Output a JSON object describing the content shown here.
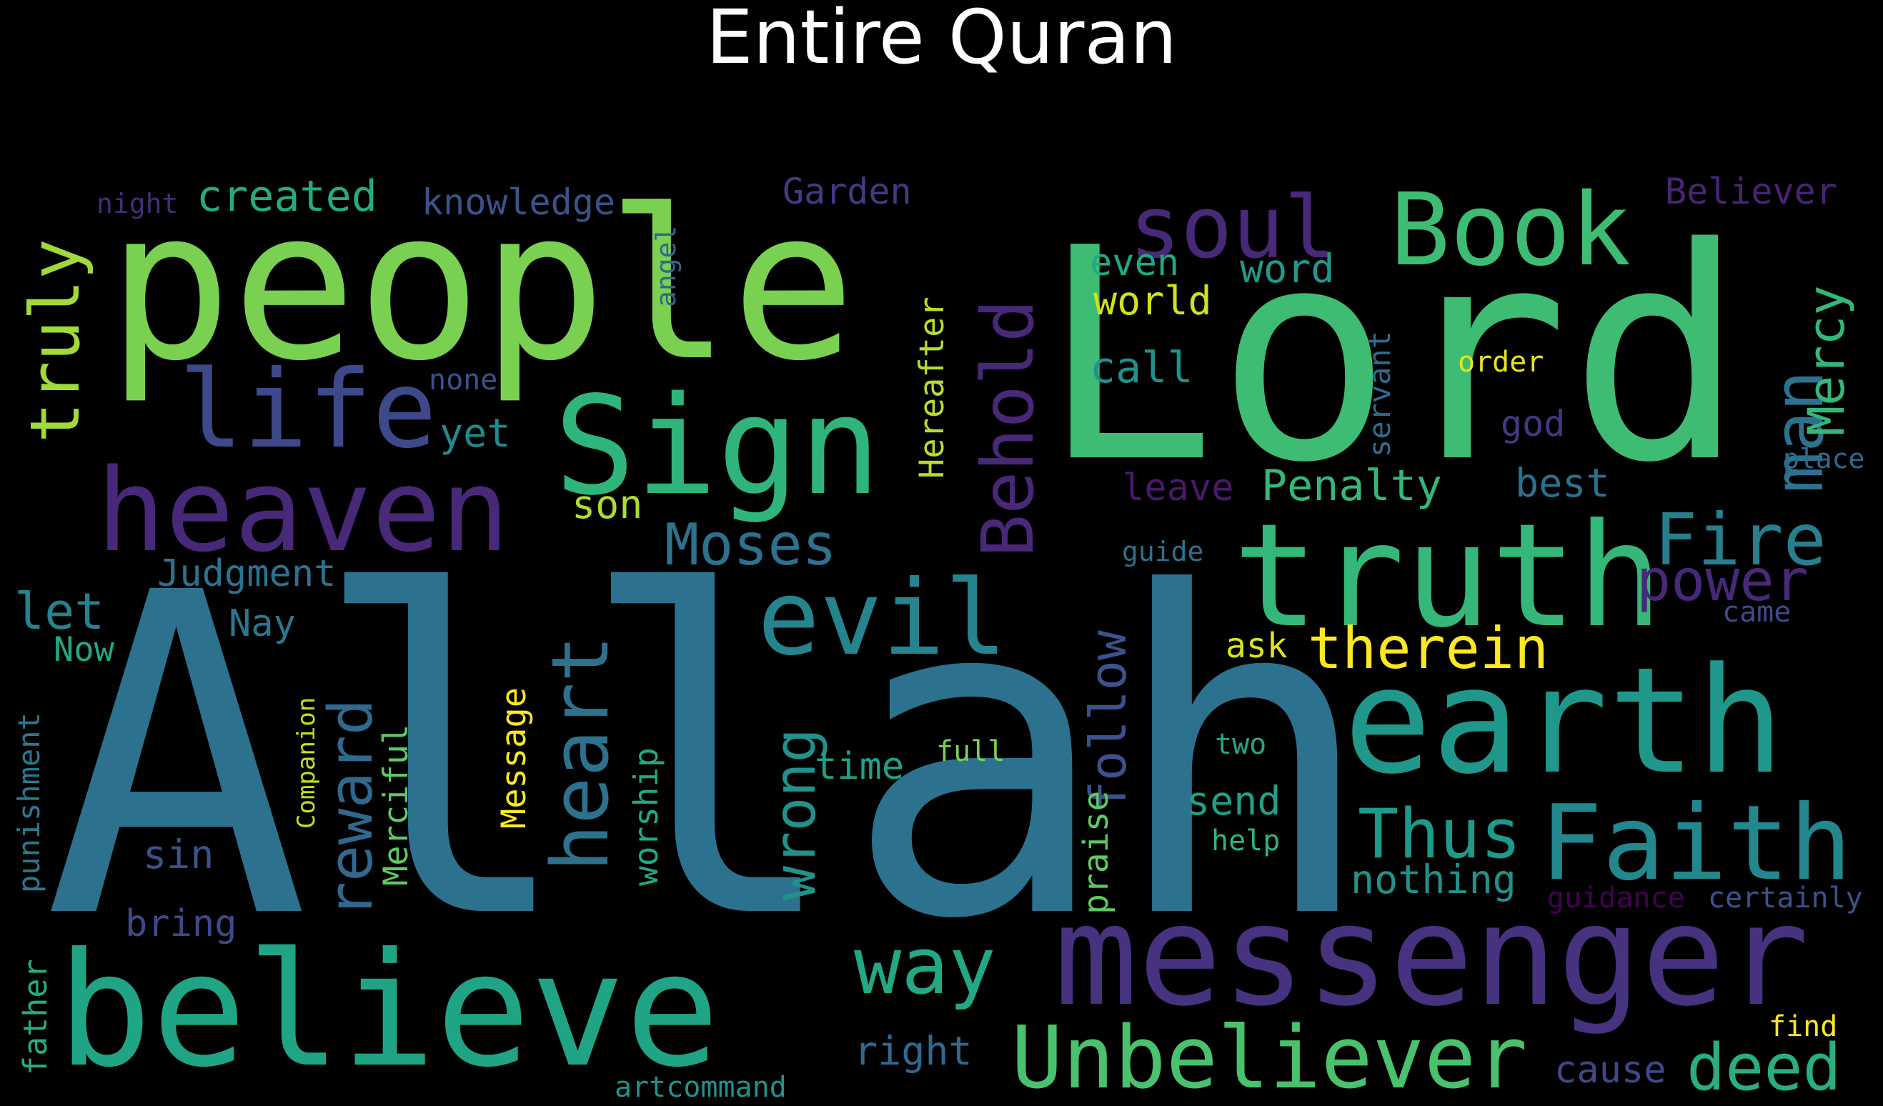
{
  "title": "Entire Quran",
  "words": [
    {
      "text": "Allah",
      "color": "#2c728e",
      "rotate": 0
    },
    {
      "text": "Lord",
      "color": "#3fbc73",
      "rotate": 0
    },
    {
      "text": "people",
      "color": "#7ad151",
      "rotate": 0
    },
    {
      "text": "believe",
      "color": "#20a486",
      "rotate": 0
    },
    {
      "text": "messenger",
      "color": "#46327e",
      "rotate": 0
    },
    {
      "text": "earth",
      "color": "#1f988b",
      "rotate": 0
    },
    {
      "text": "truth",
      "color": "#35b779",
      "rotate": 0
    },
    {
      "text": "heaven",
      "color": "#482878",
      "rotate": 0
    },
    {
      "text": "Sign",
      "color": "#2fb47c",
      "rotate": 0
    },
    {
      "text": "Book",
      "color": "#3fbc73",
      "rotate": 0
    },
    {
      "text": "Faith",
      "color": "#23888e",
      "rotate": 0
    },
    {
      "text": "Unbeliever",
      "color": "#4ac16d",
      "rotate": 0
    },
    {
      "text": "evil",
      "color": "#25848e",
      "rotate": 0
    },
    {
      "text": "life",
      "color": "#3e4989",
      "rotate": 0
    },
    {
      "text": "soul",
      "color": "#482878",
      "rotate": 0
    },
    {
      "text": "Behold",
      "color": "#482878",
      "rotate": 270
    },
    {
      "text": "heart",
      "color": "#2c728e",
      "rotate": 270
    },
    {
      "text": "man",
      "color": "#2c728e",
      "rotate": 270
    },
    {
      "text": "truly",
      "color": "#a0da39",
      "rotate": 270
    },
    {
      "text": "way",
      "color": "#22a884",
      "rotate": 0
    },
    {
      "text": "wrong",
      "color": "#21918c",
      "rotate": 270
    },
    {
      "text": "Fire",
      "color": "#277f8e",
      "rotate": 0
    },
    {
      "text": "Thus",
      "color": "#1f998a",
      "rotate": 0
    },
    {
      "text": "deed",
      "color": "#28ae80",
      "rotate": 0
    },
    {
      "text": "therein",
      "color": "#fde725",
      "rotate": 0
    },
    {
      "text": "Moses",
      "color": "#2c728e",
      "rotate": 0
    },
    {
      "text": "reward",
      "color": "#31688e",
      "rotate": 270
    },
    {
      "text": "power",
      "color": "#482878",
      "rotate": 0
    },
    {
      "text": "Mercy",
      "color": "#35b779",
      "rotate": 270
    },
    {
      "text": "follow",
      "color": "#3b528b",
      "rotate": 270
    },
    {
      "text": "let",
      "color": "#26828e",
      "rotate": 0
    },
    {
      "text": "created",
      "color": "#25ab82",
      "rotate": 0
    },
    {
      "text": "Penalty",
      "color": "#35b779",
      "rotate": 0
    },
    {
      "text": "Garden",
      "color": "#443a83",
      "rotate": 0
    },
    {
      "text": "knowledge",
      "color": "#3b528b",
      "rotate": 0
    },
    {
      "text": "Believer",
      "color": "#482475",
      "rotate": 0
    },
    {
      "text": "Judgment",
      "color": "#2c728e",
      "rotate": 0
    },
    {
      "text": "Hereafter",
      "color": "#b5de2b",
      "rotate": 270
    },
    {
      "text": "praise",
      "color": "#5ec962",
      "rotate": 270
    },
    {
      "text": "punishment",
      "color": "#2a788e",
      "rotate": 270
    },
    {
      "text": "Merciful",
      "color": "#5ec962",
      "rotate": 270
    },
    {
      "text": "worship",
      "color": "#22a884",
      "rotate": 270
    },
    {
      "text": "Message",
      "color": "#fde725",
      "rotate": 270
    },
    {
      "text": "nothing",
      "color": "#21918c",
      "rotate": 0
    },
    {
      "text": "send",
      "color": "#1fa187",
      "rotate": 0
    },
    {
      "text": "world",
      "color": "#d2e21b",
      "rotate": 0
    },
    {
      "text": "word",
      "color": "#1f998a",
      "rotate": 0
    },
    {
      "text": "even",
      "color": "#22a884",
      "rotate": 0
    },
    {
      "text": "call",
      "color": "#21918c",
      "rotate": 0
    },
    {
      "text": "right",
      "color": "#31688e",
      "rotate": 0
    },
    {
      "text": "bring",
      "color": "#3e4989",
      "rotate": 0
    },
    {
      "text": "father",
      "color": "#26ad81",
      "rotate": 270
    },
    {
      "text": "son",
      "color": "#addc30",
      "rotate": 0
    },
    {
      "text": "yet",
      "color": "#23898e",
      "rotate": 0
    },
    {
      "text": "Now",
      "color": "#22a884",
      "rotate": 0
    },
    {
      "text": "Nay",
      "color": "#2a788e",
      "rotate": 0
    },
    {
      "text": "ask",
      "color": "#dde318",
      "rotate": 0
    },
    {
      "text": "time",
      "color": "#1fa088",
      "rotate": 0
    },
    {
      "text": "sin",
      "color": "#3b528b",
      "rotate": 0
    },
    {
      "text": "god",
      "color": "#453781",
      "rotate": 0
    },
    {
      "text": "best",
      "color": "#2d708e",
      "rotate": 0
    },
    {
      "text": "servant",
      "color": "#306a8e",
      "rotate": 270
    },
    {
      "text": "leave",
      "color": "#481a6c",
      "rotate": 0
    },
    {
      "text": "cause",
      "color": "#3e4989",
      "rotate": 0
    },
    {
      "text": "Companion",
      "color": "#c2df23",
      "rotate": 270
    },
    {
      "text": "came",
      "color": "#3e4a89",
      "rotate": 0
    },
    {
      "text": "full",
      "color": "#7ad151",
      "rotate": 0
    },
    {
      "text": "help",
      "color": "#2fb47c",
      "rotate": 0
    },
    {
      "text": "artcommand",
      "color": "#21918c",
      "rotate": 0
    },
    {
      "text": "guidance",
      "color": "#440154",
      "rotate": 0
    },
    {
      "text": "certainly",
      "color": "#3b528b",
      "rotate": 0
    },
    {
      "text": "order",
      "color": "#e5e419",
      "rotate": 0
    },
    {
      "text": "two",
      "color": "#22a884",
      "rotate": 0
    },
    {
      "text": "angel",
      "color": "#31688e",
      "rotate": 270
    },
    {
      "text": "night",
      "color": "#472c7a",
      "rotate": 0
    },
    {
      "text": "none",
      "color": "#3b528b",
      "rotate": 0
    },
    {
      "text": "guide",
      "color": "#2c728e",
      "rotate": 0
    },
    {
      "text": "place",
      "color": "#31688e",
      "rotate": 0
    },
    {
      "text": "find",
      "color": "#fde725",
      "rotate": 0
    }
  ]
}
